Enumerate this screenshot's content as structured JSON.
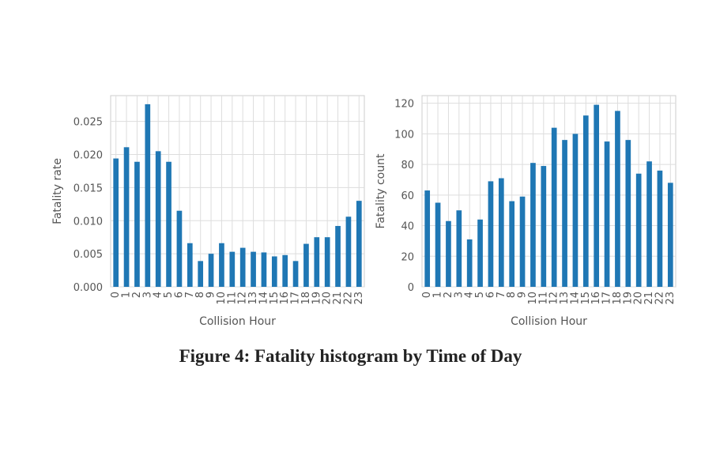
{
  "caption": "Figure 4: Fatality histogram by Time of Day",
  "chart_data": [
    {
      "type": "bar",
      "categories": [
        "0",
        "1",
        "2",
        "3",
        "4",
        "5",
        "6",
        "7",
        "8",
        "9",
        "10",
        "11",
        "12",
        "13",
        "14",
        "15",
        "16",
        "17",
        "18",
        "19",
        "20",
        "21",
        "22",
        "23"
      ],
      "values": [
        0.0194,
        0.0211,
        0.0189,
        0.0276,
        0.0205,
        0.0189,
        0.0115,
        0.0066,
        0.0039,
        0.005,
        0.0066,
        0.0053,
        0.0059,
        0.0053,
        0.0052,
        0.0046,
        0.0048,
        0.0039,
        0.0065,
        0.0075,
        0.0075,
        0.0092,
        0.0106,
        0.013
      ],
      "xlabel": "Collision Hour",
      "ylabel": "Fatality rate",
      "ylim": [
        0,
        0.0289
      ],
      "yticks": [
        "0.000",
        "0.005",
        "0.010",
        "0.015",
        "0.020",
        "0.025"
      ],
      "ytick_values": [
        0,
        0.005,
        0.01,
        0.015,
        0.02,
        0.025
      ],
      "grid": true,
      "bar_color": "#1f77b4",
      "grid_color": "#dddddd"
    },
    {
      "type": "bar",
      "categories": [
        "0",
        "1",
        "2",
        "3",
        "4",
        "5",
        "6",
        "7",
        "8",
        "9",
        "10",
        "11",
        "12",
        "13",
        "14",
        "15",
        "16",
        "17",
        "18",
        "19",
        "20",
        "21",
        "22",
        "23"
      ],
      "values": [
        63,
        55,
        43,
        50,
        31,
        44,
        69,
        71,
        56,
        59,
        81,
        79,
        104,
        96,
        100,
        112,
        119,
        95,
        115,
        96,
        74,
        82,
        76,
        68
      ],
      "xlabel": "Collision Hour",
      "ylabel": "Fatality count",
      "ylim": [
        0,
        125
      ],
      "yticks": [
        "0",
        "20",
        "40",
        "60",
        "80",
        "100",
        "120"
      ],
      "ytick_values": [
        0,
        20,
        40,
        60,
        80,
        100,
        120
      ],
      "grid": true,
      "bar_color": "#1f77b4",
      "grid_color": "#dddddd"
    }
  ]
}
